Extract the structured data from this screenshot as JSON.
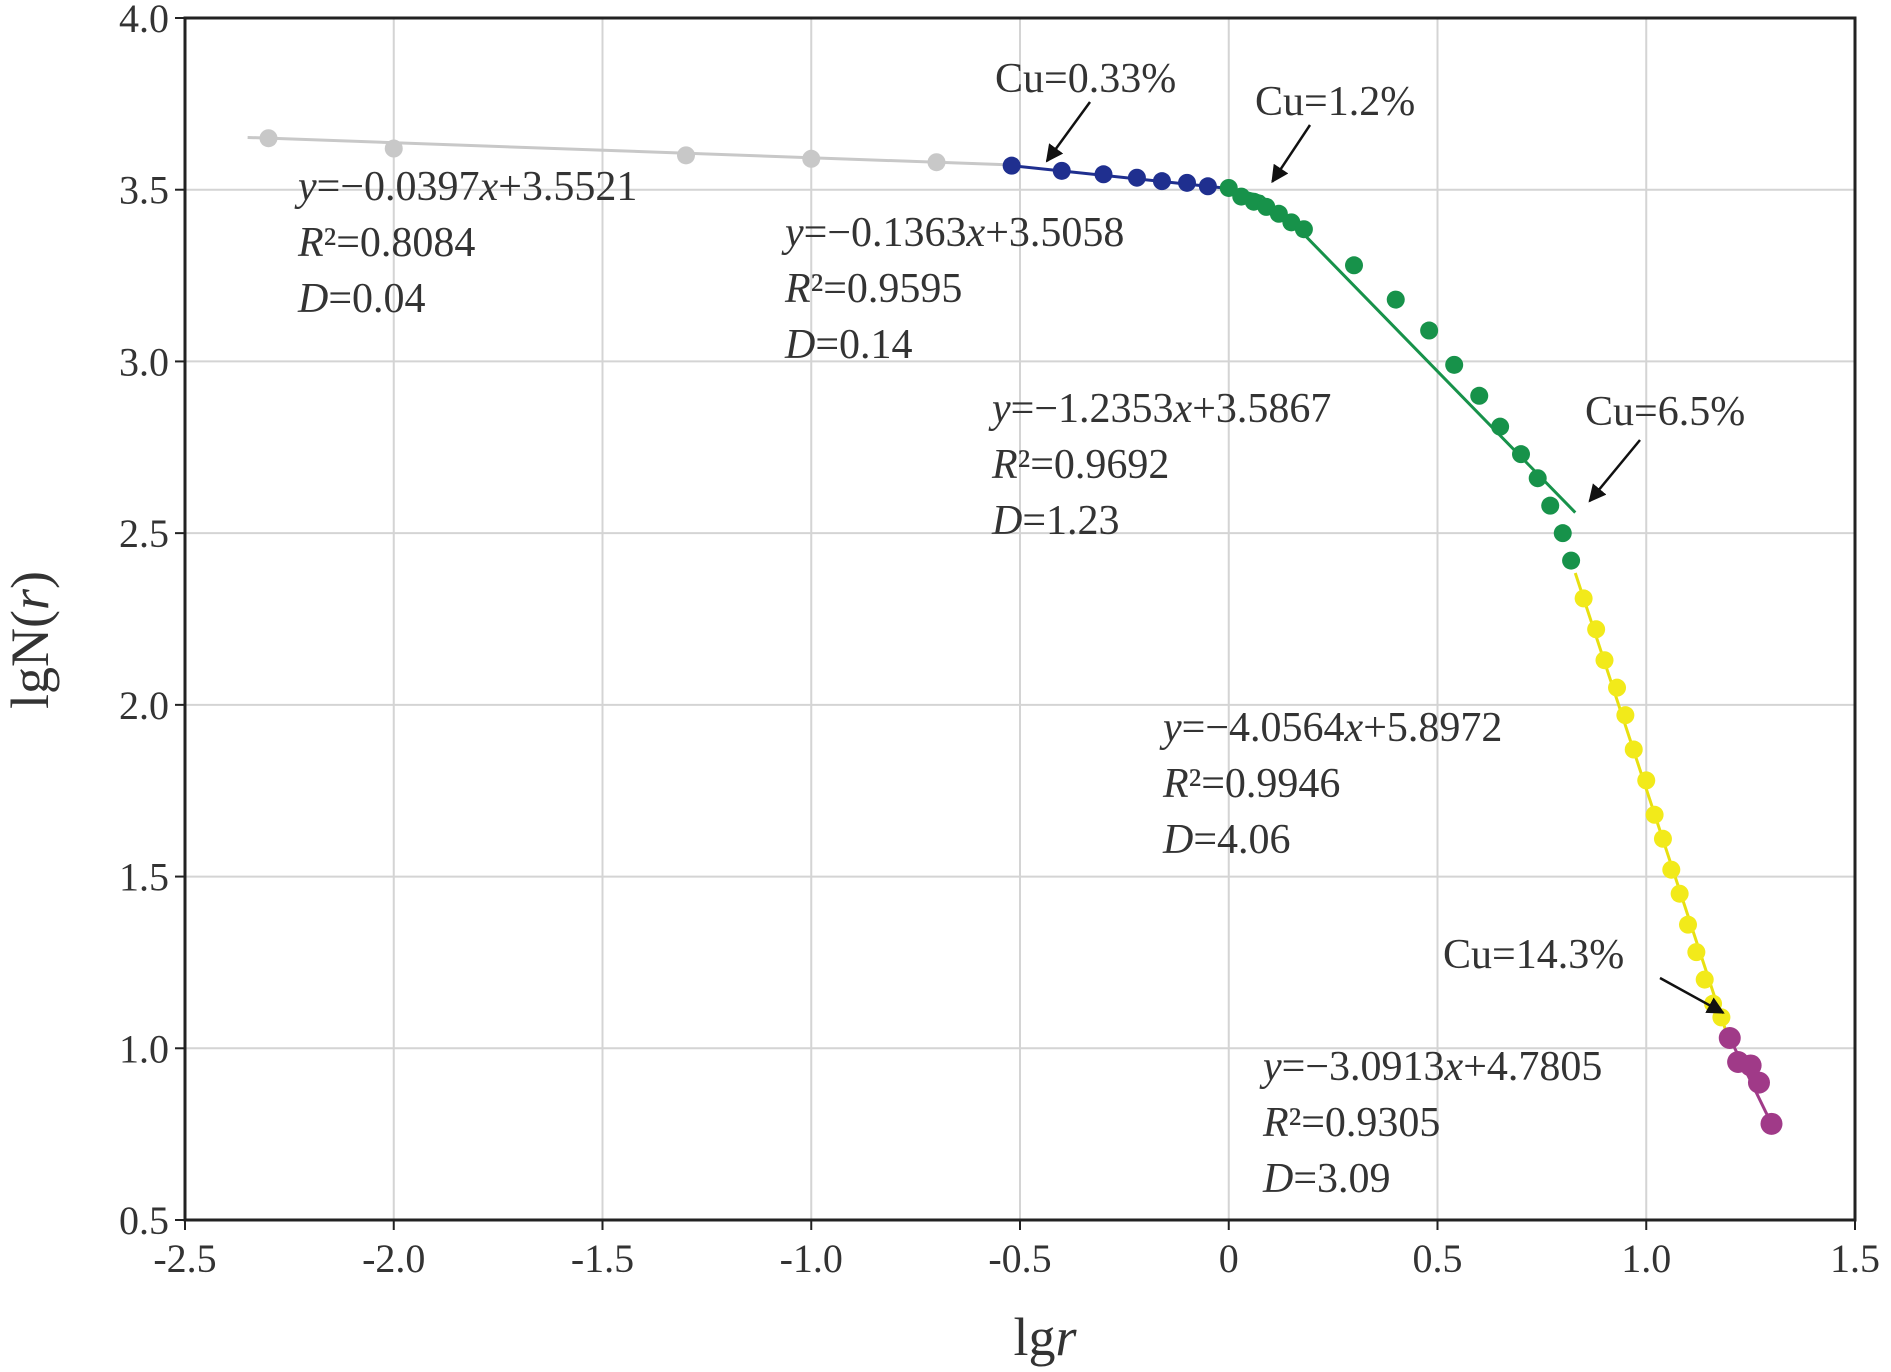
{
  "chart_data": {
    "type": "scatter",
    "xlabel_prefix": "lg",
    "xlabel_var": "r",
    "ylabel_prefix": "lgN(",
    "ylabel_var": "r",
    "ylabel_suffix": ")",
    "xlim": [
      -2.5,
      1.5
    ],
    "ylim": [
      0.5,
      4.0
    ],
    "grid": true,
    "x_ticks": [
      -2.5,
      -2.0,
      -1.5,
      -1.0,
      -0.5,
      0,
      0.5,
      1.0,
      1.5
    ],
    "x_tick_labels": [
      "-2.5",
      "-2.0",
      "-1.5",
      "-1.0",
      "-0.5",
      "0",
      "0.5",
      "1.0",
      "1.5"
    ],
    "y_ticks": [
      0.5,
      1.0,
      1.5,
      2.0,
      2.5,
      3.0,
      3.5,
      4.0
    ],
    "y_tick_labels": [
      "0.5",
      "1.0",
      "1.5",
      "2.0",
      "2.5",
      "3.0",
      "3.5",
      "4.0"
    ],
    "series": [
      {
        "color": "#c8c8c8",
        "line_color": "#c8c8c8",
        "fit_x": [
          -2.35,
          -0.5
        ],
        "points": [
          [
            -2.3,
            3.65
          ],
          [
            -2.0,
            3.62
          ],
          [
            -1.3,
            3.6
          ],
          [
            -1.0,
            3.59
          ],
          [
            -0.7,
            3.58
          ]
        ],
        "equation": {
          "prefix": "y",
          "body": "=−0.0397",
          "var": "x",
          "rest": "+3.5521"
        },
        "r2": {
          "prefix": "R",
          "body": "²=0.8084"
        },
        "d": {
          "prefix": "D",
          "body": "=0.04"
        }
      },
      {
        "color": "#1f2f8f",
        "line_color": "#1f2f8f",
        "fit_x": [
          -0.53,
          0.0
        ],
        "points": [
          [
            -0.52,
            3.57
          ],
          [
            -0.4,
            3.555
          ],
          [
            -0.3,
            3.545
          ],
          [
            -0.22,
            3.535
          ],
          [
            -0.16,
            3.525
          ],
          [
            -0.1,
            3.52
          ],
          [
            -0.05,
            3.51
          ]
        ],
        "equation": {
          "prefix": "y",
          "body": "=−0.1363",
          "var": "x",
          "rest": "+3.5058"
        },
        "r2": {
          "prefix": "R",
          "body": "²=0.9595"
        },
        "d": {
          "prefix": "D",
          "body": "=0.14"
        }
      },
      {
        "color": "#17924a",
        "line_color": "#17924a",
        "fit_x": [
          0.0,
          0.83
        ],
        "fit_knee": [
          [
            0.0,
            3.505
          ],
          [
            0.08,
            3.48
          ],
          [
            0.18,
            3.37
          ],
          [
            0.83,
            2.56
          ]
        ],
        "points": [
          [
            0.0,
            3.505
          ],
          [
            0.03,
            3.48
          ],
          [
            0.06,
            3.465
          ],
          [
            0.09,
            3.45
          ],
          [
            0.12,
            3.43
          ],
          [
            0.15,
            3.405
          ],
          [
            0.18,
            3.385
          ],
          [
            0.3,
            3.28
          ],
          [
            0.4,
            3.18
          ],
          [
            0.48,
            3.09
          ],
          [
            0.54,
            2.99
          ],
          [
            0.6,
            2.9
          ],
          [
            0.65,
            2.81
          ],
          [
            0.7,
            2.73
          ],
          [
            0.74,
            2.66
          ],
          [
            0.77,
            2.58
          ],
          [
            0.8,
            2.5
          ],
          [
            0.82,
            2.42
          ]
        ],
        "equation": {
          "prefix": "y",
          "body": "=−1.2353",
          "var": "x",
          "rest": "+3.5867"
        },
        "r2": {
          "prefix": "R",
          "body": "²=0.9692"
        },
        "d": {
          "prefix": "D",
          "body": "=1.23"
        }
      },
      {
        "color": "#f2ea1a",
        "line_color": "#e8e010",
        "fit_x": [
          0.83,
          1.19
        ],
        "points": [
          [
            0.85,
            2.31
          ],
          [
            0.88,
            2.22
          ],
          [
            0.9,
            2.13
          ],
          [
            0.93,
            2.05
          ],
          [
            0.95,
            1.97
          ],
          [
            0.97,
            1.87
          ],
          [
            1.0,
            1.78
          ],
          [
            1.02,
            1.68
          ],
          [
            1.04,
            1.61
          ],
          [
            1.06,
            1.52
          ],
          [
            1.08,
            1.45
          ],
          [
            1.1,
            1.36
          ],
          [
            1.12,
            1.28
          ],
          [
            1.14,
            1.2
          ],
          [
            1.16,
            1.13
          ],
          [
            1.18,
            1.09
          ]
        ],
        "equation": {
          "prefix": "y",
          "body": "=−4.0564",
          "var": "x",
          "rest": "+5.8972"
        },
        "r2": {
          "prefix": "R",
          "body": "²=0.9946"
        },
        "d": {
          "prefix": "D",
          "body": "=4.06"
        }
      },
      {
        "color": "#a03a88",
        "line_color": "#a03a88",
        "fit_x": [
          1.19,
          1.3
        ],
        "points": [
          [
            1.2,
            1.03
          ],
          [
            1.22,
            0.96
          ],
          [
            1.25,
            0.95
          ],
          [
            1.27,
            0.9
          ],
          [
            1.3,
            0.78
          ]
        ],
        "equation": {
          "prefix": "y",
          "body": "=−3.0913",
          "var": "x",
          "rest": "+4.7805"
        },
        "r2": {
          "prefix": "R",
          "body": "²=0.9305"
        },
        "d": {
          "prefix": "D",
          "body": "=3.09"
        }
      }
    ],
    "thresholds": [
      {
        "label": "Cu=0.33%",
        "at": [
          -0.45,
          3.56
        ]
      },
      {
        "label": "Cu=1.2%",
        "at": [
          0.09,
          3.5
        ]
      },
      {
        "label": "Cu=6.5%",
        "at": [
          0.85,
          2.57
        ]
      },
      {
        "label": "Cu=14.3%",
        "at": [
          1.17,
          1.08
        ]
      }
    ]
  }
}
